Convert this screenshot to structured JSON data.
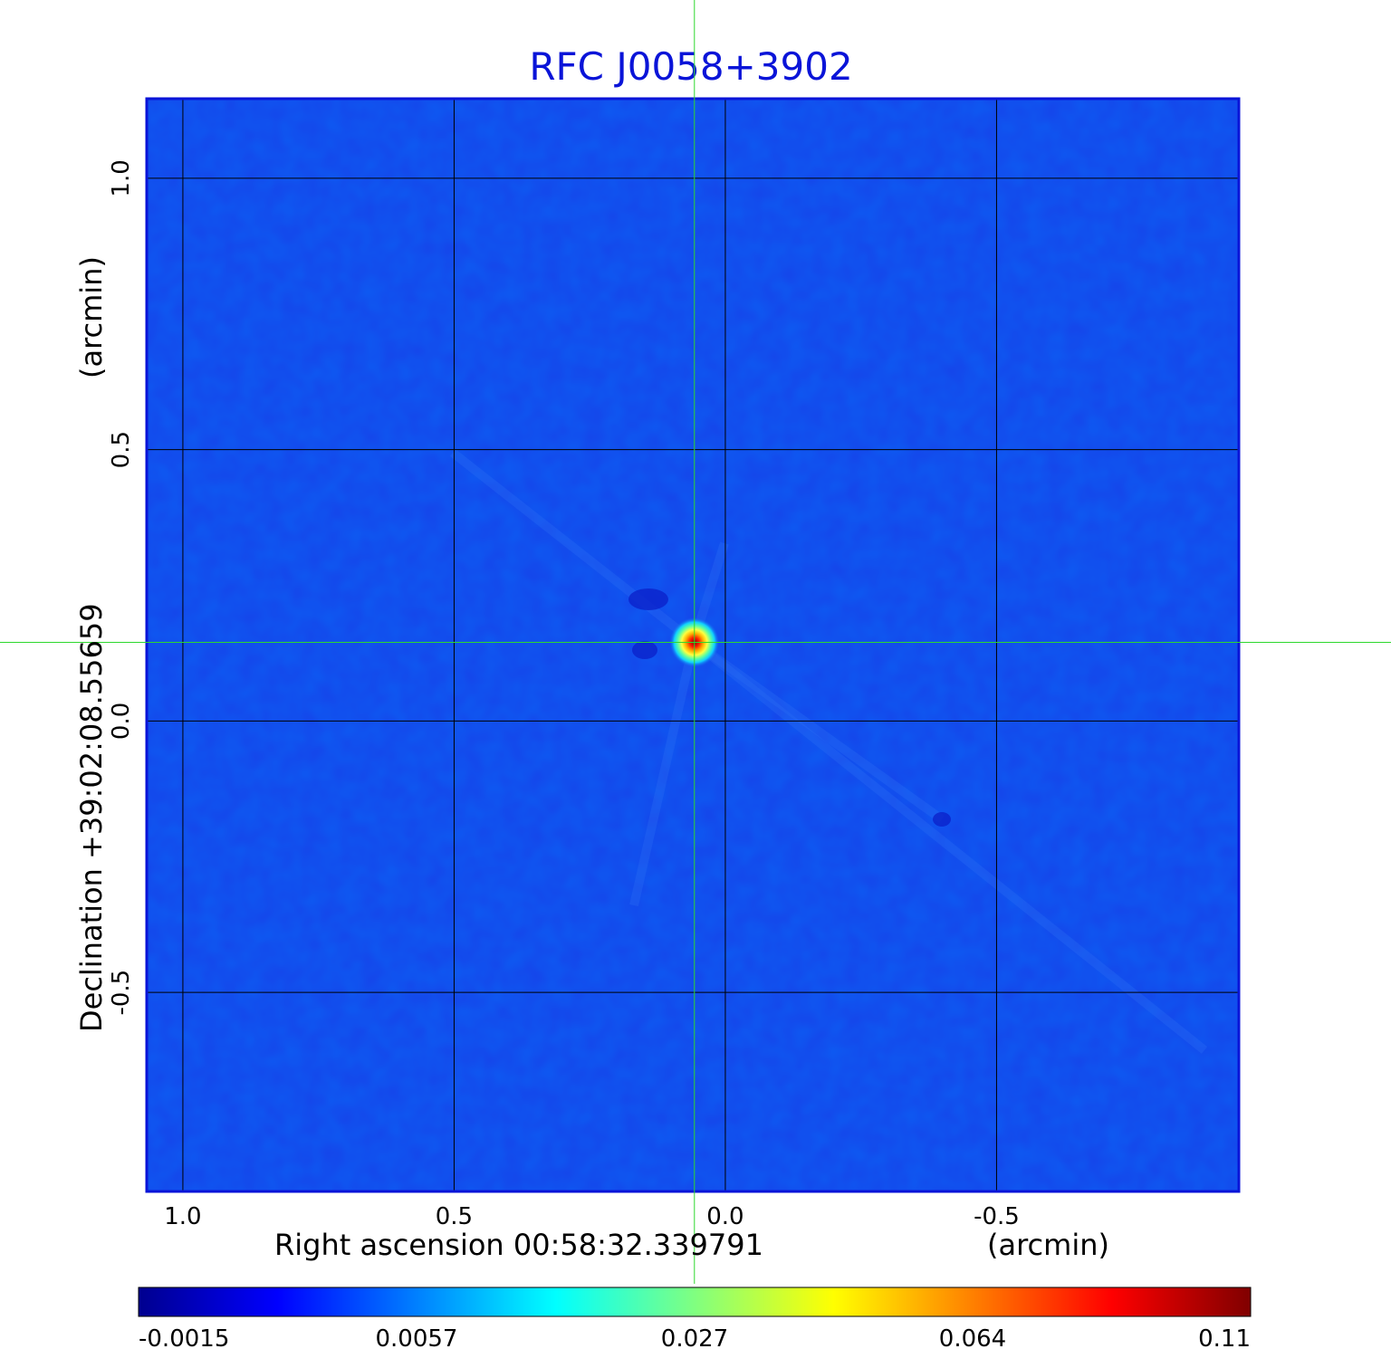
{
  "chart_data": {
    "type": "heatmap",
    "title": "RFC J0058+3902",
    "xlabel": "Right ascension  00:58:32.339791",
    "xlabel_unit": "(arcmin)",
    "ylabel": "Declination  +39:02:08.55659",
    "ylabel_unit": "(arcmin)",
    "xlim": [
      1.065,
      -0.945
    ],
    "ylim": [
      -0.865,
      1.145
    ],
    "x_ticks": [
      {
        "value": 1.0,
        "label": "1.0"
      },
      {
        "value": 0.5,
        "label": "0.5"
      },
      {
        "value": 0.0,
        "label": "0.0"
      },
      {
        "value": -0.5,
        "label": "-0.5"
      }
    ],
    "y_ticks": [
      {
        "value": 1.0,
        "label": "1.0"
      },
      {
        "value": 0.5,
        "label": "0.5"
      },
      {
        "value": 0.0,
        "label": "0.0"
      },
      {
        "value": -0.5,
        "label": "-0.5"
      }
    ],
    "grid": true,
    "source_peak": {
      "x": 0.057,
      "y": 0.145,
      "value": 0.11
    },
    "crosshair": {
      "x": 0.057,
      "y": 0.145,
      "color": "#2ed82e"
    },
    "colorbar": {
      "position": "bottom",
      "ticks": [
        {
          "fraction": 0.0,
          "label": "-0.0015"
        },
        {
          "fraction": 0.25,
          "label": "0.0057"
        },
        {
          "fraction": 0.5,
          "label": "0.027"
        },
        {
          "fraction": 0.75,
          "label": "0.064"
        },
        {
          "fraction": 1.0,
          "label": "0.11"
        }
      ],
      "colormap": [
        "#00008f",
        "#0000ff",
        "#0080ff",
        "#00ffff",
        "#80ff80",
        "#ffff00",
        "#ff8000",
        "#ff0000",
        "#800000"
      ]
    },
    "colors": {
      "title": "#0a14d8",
      "background_map": "#1545ea",
      "frame": "#0a14d8",
      "grid": "#000000"
    }
  }
}
